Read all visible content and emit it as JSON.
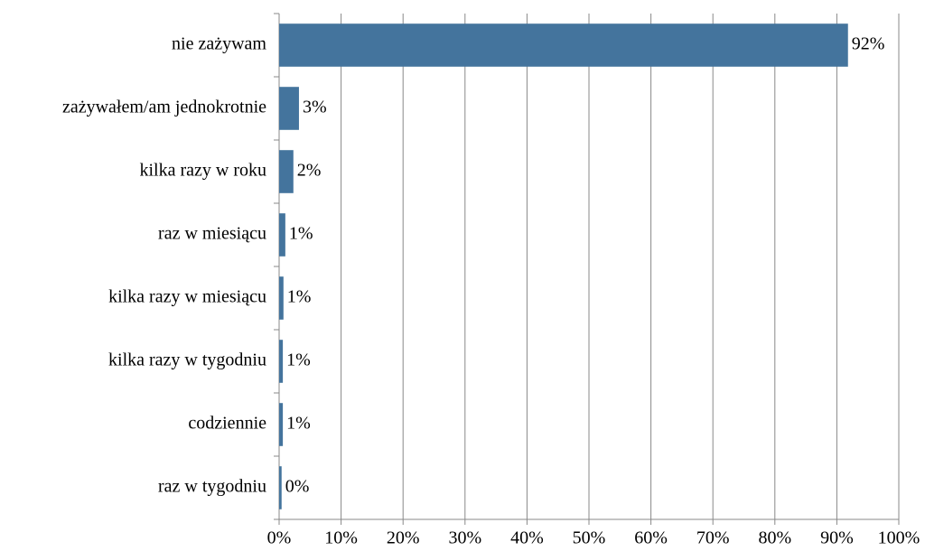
{
  "chart_data": {
    "type": "barh",
    "categories": [
      "nie zażywam",
      "zażywałem/am  jednokrotnie",
      "kilka razy w roku",
      "raz w miesiącu",
      "kilka razy w miesiącu",
      "kilka razy w tygodniu",
      "codziennie",
      "raz w tygodniu"
    ],
    "values": [
      91.8,
      3.2,
      2.3,
      1.0,
      0.7,
      0.6,
      0.6,
      0.4
    ],
    "value_labels": [
      "92%",
      "3%",
      "2%",
      "1%",
      "1%",
      "1%",
      "1%",
      "0%"
    ],
    "color": "#44749d",
    "xlim": [
      0,
      100
    ],
    "xticks": [
      {
        "value": 0,
        "label": "0%"
      },
      {
        "value": 10,
        "label": "10%"
      },
      {
        "value": 20,
        "label": "20%"
      },
      {
        "value": 30,
        "label": "30%"
      },
      {
        "value": 40,
        "label": "40%"
      },
      {
        "value": 50,
        "label": "50%"
      },
      {
        "value": 60,
        "label": "60%"
      },
      {
        "value": 70,
        "label": "70%"
      },
      {
        "value": 80,
        "label": "80%"
      },
      {
        "value": 90,
        "label": "90%"
      },
      {
        "value": 100,
        "label": "100%"
      }
    ],
    "grid": true
  }
}
